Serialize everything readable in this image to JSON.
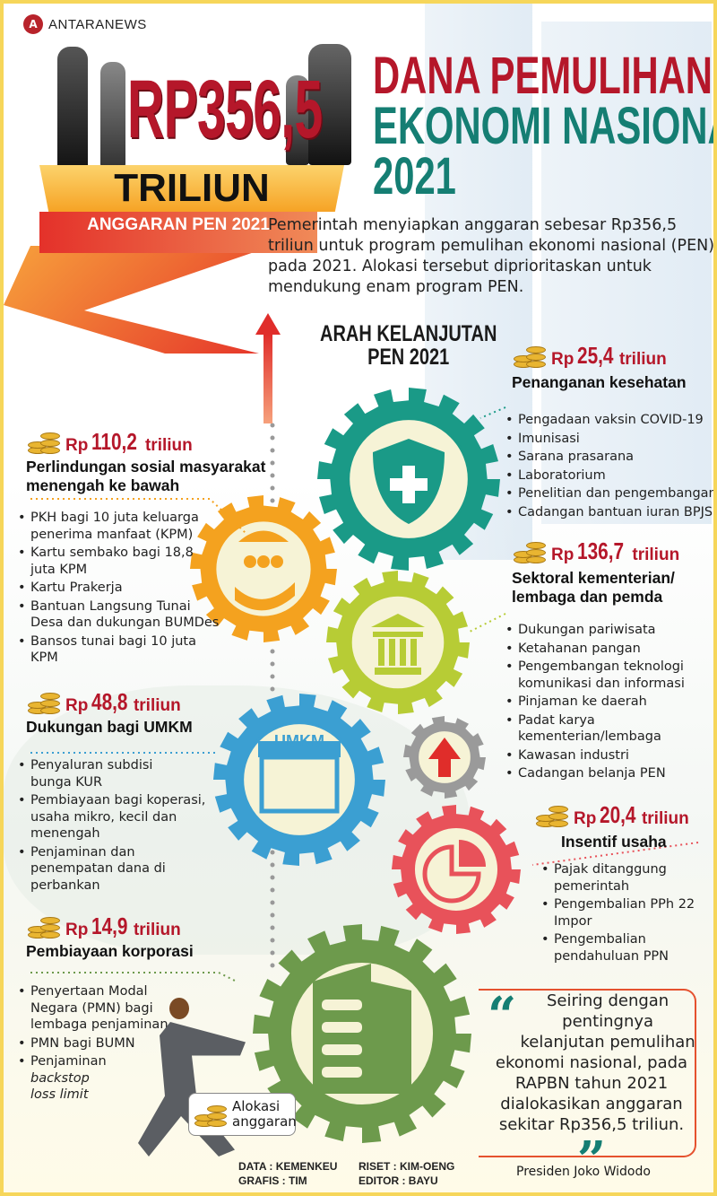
{
  "brand": {
    "logo_text": "ANTARANEWS"
  },
  "hero": {
    "amount": "RP356,5",
    "unit": "TRILIUN",
    "subtitle": "ANGGARAN PEN 2021"
  },
  "title": {
    "line1": "DANA PEMULIHAN",
    "line2": "EKONOMI NASIONAL",
    "line3": "2021"
  },
  "intro": "Pemerintah menyiapkan anggaran sebesar Rp356,5 triliun untuk program pemulihan ekonomi nasional (PEN) pada 2021. Alokasi tersebut diprioritaskan untuk mendukung enam program PEN.",
  "section_title": {
    "line1": "ARAH KELANJUTAN",
    "line2": "PEN 2021"
  },
  "programs": [
    {
      "rp": "Rp",
      "amount": "25,4",
      "unit": "triliun",
      "heading": "Penanganan kesehatan",
      "icon": "shield-plus-icon",
      "color": "#1a9a87",
      "items": [
        "Pengadaan vaksin COVID-19",
        "Imunisasi",
        "Sarana prasarana",
        "Laboratorium",
        "Penelitian dan pengembangan",
        "Cadangan bantuan iuran BPJS"
      ]
    },
    {
      "rp": "Rp",
      "amount": "136,7",
      "unit": "triliun",
      "heading": "Sektoral kementerian/ lembaga dan pemda",
      "icon": "government-building-icon",
      "color": "#b7cc35",
      "items": [
        "Dukungan pariwisata",
        "Ketahanan pangan",
        "Pengembangan teknologi komunikasi dan informasi",
        "Pinjaman ke daerah",
        "Padat karya kementerian/lembaga",
        "Kawasan industri",
        "Cadangan belanja PEN"
      ]
    },
    {
      "rp": "Rp",
      "amount": "20,4",
      "unit": "triliun",
      "heading": "Insentif usaha",
      "icon": "pie-chart-gear-icon",
      "color": "#e8525a",
      "items": [
        "Pajak ditanggung pemerintah",
        "Pengembalian PPh 22 Impor",
        "Pengembalian pendahuluan PPN"
      ]
    },
    {
      "rp": "Rp",
      "amount": "110,2",
      "unit": "triliun",
      "heading": "Perlindungan sosial masyarakat menengah ke bawah",
      "icon": "umbrella-family-icon",
      "color": "#f4a21f",
      "items": [
        "PKH bagi 10 juta keluarga penerima manfaat (KPM)",
        "Kartu sembako bagi 18,8 juta KPM",
        "Kartu Prakerja",
        "Bantuan Langsung Tunai Desa dan dukungan BUMDes",
        "Bansos tunai bagi 10 juta KPM"
      ]
    },
    {
      "rp": "Rp",
      "amount": "48,8",
      "unit": "triliun",
      "heading": "Dukungan bagi UMKM",
      "icon": "shop-icon",
      "icon_label": "UMKM",
      "color": "#3b9fd2",
      "items": [
        "Penyaluran subdisi bunga KUR",
        "Pembiayaan bagi koperasi, usaha mikro, kecil dan menengah",
        "Penjaminan dan penempatan dana di perbankan"
      ]
    },
    {
      "rp": "Rp",
      "amount": "14,9",
      "unit": "triliun",
      "heading": "Pembiayaan korporasi",
      "icon": "office-building-icon",
      "color": "#6d9a4c",
      "items": [
        "Penyertaan Modal Negara (PMN) bagi lembaga penjaminan",
        "PMN bagi BUMN",
        "Penjaminan"
      ],
      "items_italic": "backstop loss limit"
    }
  ],
  "quote": {
    "open": "“",
    "text": "Seiring dengan pentingnya kelanjutan pemulihan ekonomi nasional, pada RAPBN tahun 2021 dialokasikan anggaran sekitar Rp356,5 triliun.",
    "close": "”",
    "author": "Presiden Joko Widodo"
  },
  "legend": {
    "label": "Alokasi anggaran"
  },
  "credits": {
    "data": "DATA : KEMENKEU",
    "riset": "RISET : KIM-OENG",
    "grafis": "GRAFIS : TIM",
    "editor": "EDITOR : BAYU"
  },
  "colors": {
    "red": "#b5172a",
    "teal": "#157e73",
    "orange": "#f4a21f",
    "border": "#f6d65a"
  }
}
